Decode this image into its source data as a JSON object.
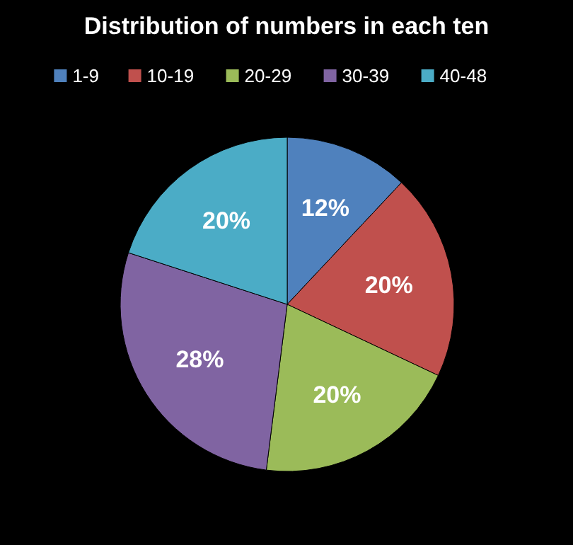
{
  "chart_data": {
    "type": "pie",
    "title": "Distribution of numbers in each ten",
    "categories": [
      "1-9",
      "10-19",
      "20-29",
      "30-39",
      "40-48"
    ],
    "values": [
      12,
      20,
      20,
      28,
      20
    ],
    "colors": [
      "#4f81bd",
      "#c0504d",
      "#9bbb59",
      "#8064a2",
      "#4bacc6"
    ],
    "value_labels": [
      "12%",
      "20%",
      "20%",
      "28%",
      "20%"
    ],
    "legend": "top"
  }
}
